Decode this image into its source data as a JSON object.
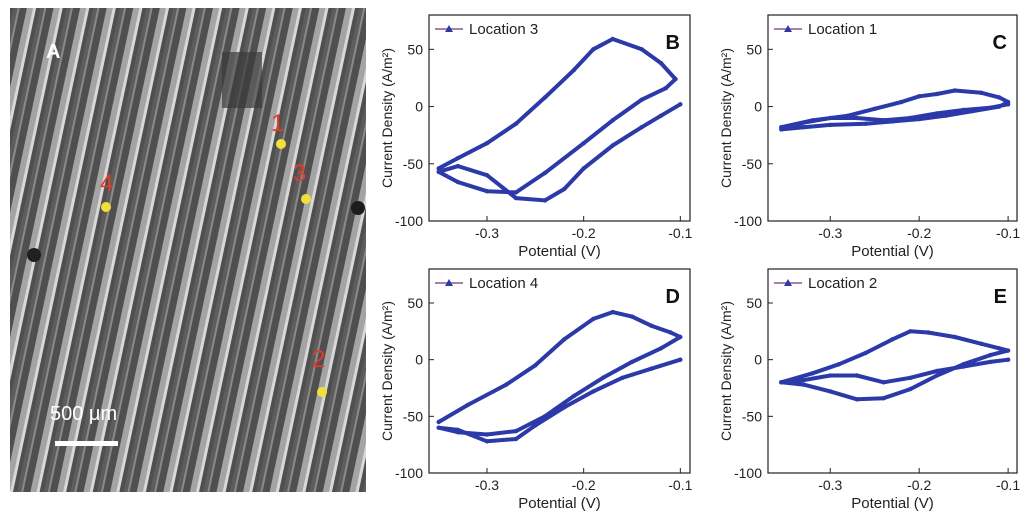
{
  "figure": {
    "micrograph": {
      "panel_label": "A",
      "scale_bar_label": "500 μm",
      "locations": [
        {
          "label": "1"
        },
        {
          "label": "3"
        },
        {
          "label": "4"
        },
        {
          "label": "2"
        }
      ],
      "colors": {
        "marker": "#f2df3a",
        "marker_label": "#e23b2a",
        "panel_label": "#ffffff"
      }
    }
  },
  "chart_data": [
    {
      "panel": "B",
      "type": "line",
      "legend": "Location 3",
      "legend_position": "top-left",
      "xlabel": "Potential (V)",
      "ylabel": "Current Density (A/m²)",
      "xlim": [
        -0.36,
        -0.09
      ],
      "ylim": [
        -100,
        80
      ],
      "xticks": [
        -0.3,
        -0.2,
        -0.1
      ],
      "xtick_labels": [
        "-0.3",
        "-0.2",
        "-0.1"
      ],
      "yticks": [
        -100,
        -50,
        0,
        50
      ],
      "ytick_labels": [
        "-100",
        "-50",
        "0",
        "50"
      ],
      "color": "#2b3aa8",
      "series": [
        {
          "x": [
            -0.35,
            -0.33,
            -0.3,
            -0.27,
            -0.24,
            -0.21,
            -0.19,
            -0.17,
            -0.14,
            -0.12,
            -0.105,
            -0.115,
            -0.14,
            -0.17,
            -0.2,
            -0.24,
            -0.27,
            -0.3,
            -0.33,
            -0.35,
            -0.33,
            -0.3,
            -0.27,
            -0.24,
            -0.22,
            -0.2,
            -0.17,
            -0.14,
            -0.12,
            -0.1
          ],
          "y": [
            -54,
            -45,
            -32,
            -15,
            8,
            32,
            50,
            59,
            50,
            38,
            24,
            16,
            6,
            -12,
            -32,
            -58,
            -75,
            -74,
            -66,
            -57,
            -52,
            -60,
            -80,
            -82,
            -72,
            -54,
            -34,
            -18,
            -8,
            2
          ]
        }
      ]
    },
    {
      "panel": "C",
      "type": "line",
      "legend": "Location 1",
      "legend_position": "top-left",
      "xlabel": "Potential (V)",
      "ylabel": "Current Density (A/m²)",
      "xlim": [
        -0.37,
        -0.09
      ],
      "ylim": [
        -100,
        80
      ],
      "xticks": [
        -0.3,
        -0.2,
        -0.1
      ],
      "xtick_labels": [
        "-0.3",
        "-0.2",
        "-0.1"
      ],
      "yticks": [
        -100,
        -50,
        0,
        50
      ],
      "ytick_labels": [
        "-100",
        "-50",
        "0",
        "50"
      ],
      "color": "#2b3aa8",
      "series": [
        {
          "x": [
            -0.355,
            -0.32,
            -0.28,
            -0.25,
            -0.22,
            -0.2,
            -0.18,
            -0.16,
            -0.13,
            -0.11,
            -0.1,
            -0.11,
            -0.14,
            -0.17,
            -0.2,
            -0.23,
            -0.26,
            -0.3,
            -0.33,
            -0.355,
            -0.33,
            -0.3,
            -0.27,
            -0.24,
            -0.21,
            -0.18,
            -0.15,
            -0.12,
            -0.1
          ],
          "y": [
            -18,
            -12,
            -8,
            -2,
            4,
            9,
            11,
            14,
            12,
            8,
            4,
            0,
            -4,
            -8,
            -11,
            -13,
            -15,
            -16,
            -18,
            -20,
            -14,
            -10,
            -10,
            -12,
            -10,
            -6,
            -3,
            -1,
            2
          ]
        }
      ]
    },
    {
      "panel": "D",
      "type": "line",
      "legend": "Location 4",
      "legend_position": "top-left",
      "xlabel": "Potential (V)",
      "ylabel": "Current Density (A/m²)",
      "xlim": [
        -0.36,
        -0.09
      ],
      "ylim": [
        -100,
        80
      ],
      "xticks": [
        -0.3,
        -0.2,
        -0.1
      ],
      "xtick_labels": [
        "-0.3",
        "-0.2",
        "-0.1"
      ],
      "yticks": [
        -100,
        -50,
        0,
        50
      ],
      "ytick_labels": [
        "-100",
        "-50",
        "0",
        "50"
      ],
      "color": "#2b3aa8",
      "series": [
        {
          "x": [
            -0.35,
            -0.32,
            -0.28,
            -0.25,
            -0.22,
            -0.19,
            -0.17,
            -0.15,
            -0.13,
            -0.11,
            -0.1,
            -0.12,
            -0.15,
            -0.18,
            -0.21,
            -0.24,
            -0.27,
            -0.3,
            -0.33,
            -0.35,
            -0.33,
            -0.3,
            -0.27,
            -0.25,
            -0.22,
            -0.19,
            -0.16,
            -0.13,
            -0.1
          ],
          "y": [
            -55,
            -40,
            -22,
            -5,
            18,
            36,
            42,
            38,
            30,
            24,
            20,
            10,
            -2,
            -16,
            -32,
            -50,
            -63,
            -66,
            -64,
            -60,
            -62,
            -72,
            -70,
            -58,
            -42,
            -28,
            -16,
            -8,
            0
          ]
        }
      ]
    },
    {
      "panel": "E",
      "type": "line",
      "legend": "Location 2",
      "legend_position": "top-left",
      "xlabel": "Potential (V)",
      "ylabel": "Current Density (A/m²)",
      "xlim": [
        -0.37,
        -0.09
      ],
      "ylim": [
        -100,
        80
      ],
      "xticks": [
        -0.3,
        -0.2,
        -0.1
      ],
      "xtick_labels": [
        "-0.3",
        "-0.2",
        "-0.1"
      ],
      "yticks": [
        -100,
        -50,
        0,
        50
      ],
      "ytick_labels": [
        "-100",
        "-50",
        "0",
        "50"
      ],
      "color": "#2b3aa8",
      "series": [
        {
          "x": [
            -0.355,
            -0.32,
            -0.29,
            -0.26,
            -0.23,
            -0.21,
            -0.19,
            -0.16,
            -0.13,
            -0.11,
            -0.1,
            -0.12,
            -0.15,
            -0.18,
            -0.21,
            -0.24,
            -0.27,
            -0.3,
            -0.33,
            -0.355,
            -0.33,
            -0.3,
            -0.27,
            -0.24,
            -0.21,
            -0.18,
            -0.15,
            -0.12,
            -0.1
          ],
          "y": [
            -20,
            -12,
            -4,
            6,
            18,
            25,
            24,
            20,
            14,
            10,
            8,
            4,
            -4,
            -14,
            -26,
            -34,
            -35,
            -28,
            -22,
            -20,
            -18,
            -14,
            -14,
            -20,
            -16,
            -10,
            -6,
            -2,
            0
          ]
        }
      ]
    }
  ]
}
